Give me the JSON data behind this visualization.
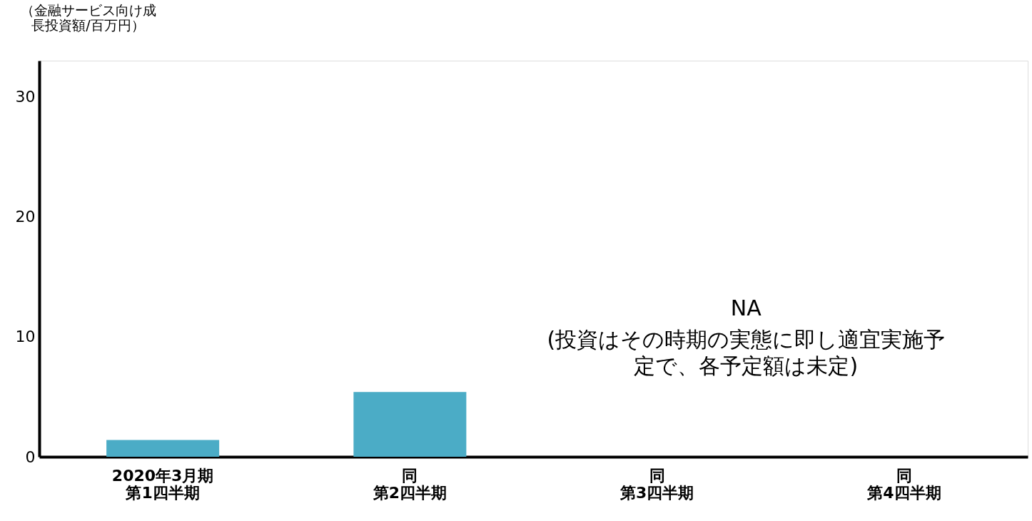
{
  "chart_data": {
    "type": "bar",
    "ylabel": "（金融サービス向け成長投資額/百万円）",
    "categories": [
      "2020年3月期第1四半期",
      "同第2四半期",
      "同第3四半期",
      "同第4四半期"
    ],
    "values": [
      1.4,
      5.4,
      null,
      null
    ],
    "color": "#4bacc6",
    "ylim": [
      0,
      33
    ],
    "yticks": [
      0,
      10,
      20,
      30
    ],
    "grid": false,
    "annotations": [
      "NA",
      "(投資はその時期の実態に即し適宜実施予定で、各予定額は未定)"
    ]
  }
}
